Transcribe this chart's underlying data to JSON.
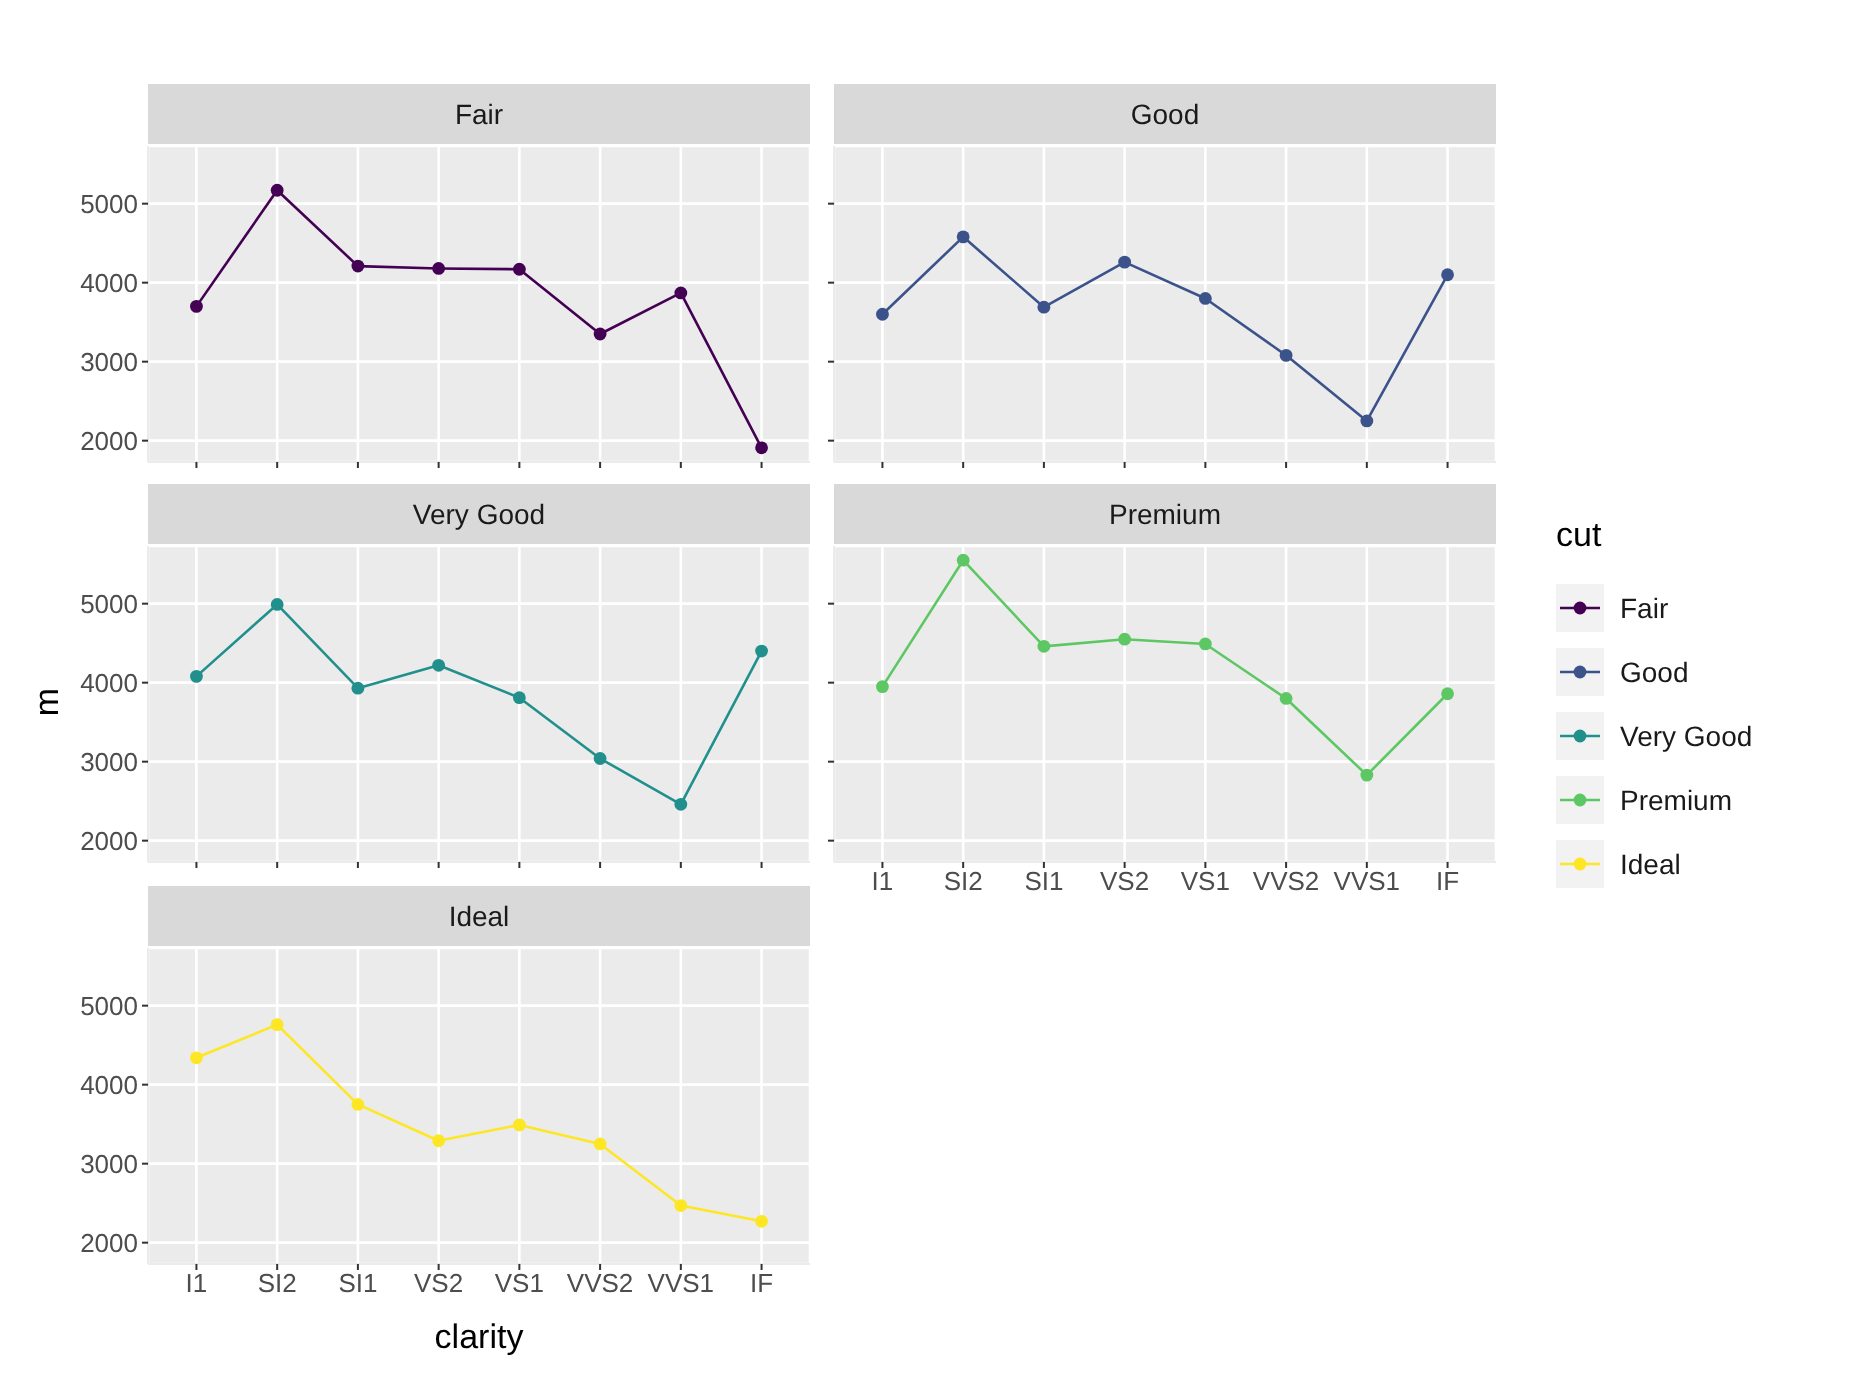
{
  "chart_data": [
    {
      "type": "line",
      "title": "Fair",
      "categories": [
        "I1",
        "SI2",
        "SI1",
        "VS2",
        "VS1",
        "VVS2",
        "VVS1",
        "IF"
      ],
      "series": [
        {
          "name": "Fair",
          "color": "#440154",
          "values": [
            3700,
            5170,
            4210,
            4180,
            4170,
            3350,
            3870,
            1910
          ]
        }
      ],
      "ylim": [
        1730,
        5730
      ],
      "yticks": [
        2000,
        3000,
        4000,
        5000
      ],
      "grid": true,
      "marker": "circle",
      "tick_labels": "y",
      "legend": "right",
      "legend_title": "cut"
    },
    {
      "type": "line",
      "title": "Good",
      "categories": [
        "I1",
        "SI2",
        "SI1",
        "VS2",
        "VS1",
        "VVS2",
        "VVS1",
        "IF"
      ],
      "series": [
        {
          "name": "Good",
          "color": "#3b528b",
          "values": [
            3600,
            4580,
            3690,
            4260,
            3800,
            3080,
            2250,
            4100
          ]
        }
      ],
      "ylim": [
        1730,
        5730
      ],
      "yticks": [
        2000,
        3000,
        4000,
        5000
      ],
      "grid": true,
      "marker": "circle",
      "tick_labels": false,
      "legend": "right"
    },
    {
      "type": "line",
      "title": "Very Good",
      "ylabel": "m",
      "categories": [
        "I1",
        "SI2",
        "SI1",
        "VS2",
        "VS1",
        "VVS2",
        "VVS1",
        "IF"
      ],
      "series": [
        {
          "name": "Very Good",
          "color": "#21908c",
          "values": [
            4080,
            4990,
            3930,
            4220,
            3810,
            3040,
            2460,
            4400
          ]
        }
      ],
      "ylim": [
        1730,
        5730
      ],
      "yticks": [
        2000,
        3000,
        4000,
        5000
      ],
      "grid": true,
      "marker": "circle",
      "tick_labels": "y",
      "legend": "right"
    },
    {
      "type": "line",
      "title": "Premium",
      "categories": [
        "I1",
        "SI2",
        "SI1",
        "VS2",
        "VS1",
        "VVS2",
        "VVS1",
        "IF"
      ],
      "series": [
        {
          "name": "Premium",
          "color": "#5dc863",
          "values": [
            3950,
            5550,
            4460,
            4550,
            4490,
            3800,
            2830,
            3860
          ]
        }
      ],
      "ylim": [
        1730,
        5730
      ],
      "yticks": [
        2000,
        3000,
        4000,
        5000
      ],
      "grid": true,
      "marker": "circle",
      "tick_labels": "x",
      "legend": "right"
    },
    {
      "type": "line",
      "title": "Ideal",
      "xlabel": "clarity",
      "categories": [
        "I1",
        "SI2",
        "SI1",
        "VS2",
        "VS1",
        "VVS2",
        "VVS1",
        "IF"
      ],
      "series": [
        {
          "name": "Ideal",
          "color": "#fde725",
          "values": [
            4340,
            4760,
            3750,
            3290,
            3490,
            3250,
            2470,
            2270
          ]
        }
      ],
      "ylim": [
        1730,
        5730
      ],
      "yticks": [
        2000,
        3000,
        4000,
        5000
      ],
      "grid": true,
      "marker": "circle",
      "legend": "right"
    }
  ]
}
